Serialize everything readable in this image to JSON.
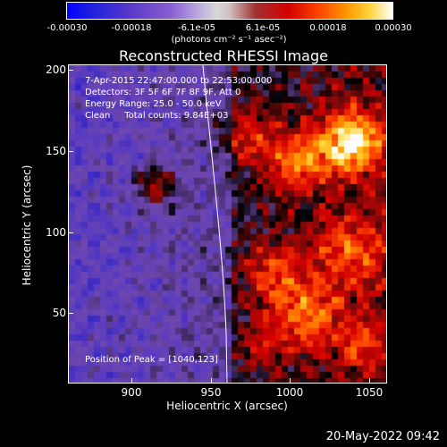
{
  "colorbar": {
    "ticks": [
      "-0.00030",
      "-0.00018",
      "-6.1e-05",
      "6.1e-05",
      "0.00018",
      "0.00030"
    ],
    "units": "(photons cm⁻² s⁻¹ asec⁻²)"
  },
  "title": "Reconstructed RHESSI Image",
  "info": {
    "time_range": "7-Apr-2015 22:47:00.000 to 22:53:00.000",
    "detectors": "Detectors: 3F 5F 6F 7F 8F 9F, Att 0",
    "energy": "Energy Range: 25.0 - 50.0 keV",
    "clean": "Clean     Total counts: 9.84E+03",
    "peak": "Position of Peak = [1040,123]"
  },
  "chart_data": {
    "type": "heatmap",
    "title": "Reconstructed RHESSI Image",
    "xlabel": "Heliocentric X (arcsec)",
    "ylabel": "Heliocentric Y (arcsec)",
    "xlim": [
      860,
      1060
    ],
    "ylim": [
      5,
      202
    ],
    "x_ticks": [
      "900",
      "950",
      "1000",
      "1050"
    ],
    "y_ticks": [
      "50",
      "100",
      "150",
      "200"
    ],
    "colorbar_range": [
      -0.0003,
      0.0003
    ],
    "peak_position": [
      1040,
      123
    ],
    "limb_visible": true
  },
  "timestamp": "20-May-2022 09:42"
}
